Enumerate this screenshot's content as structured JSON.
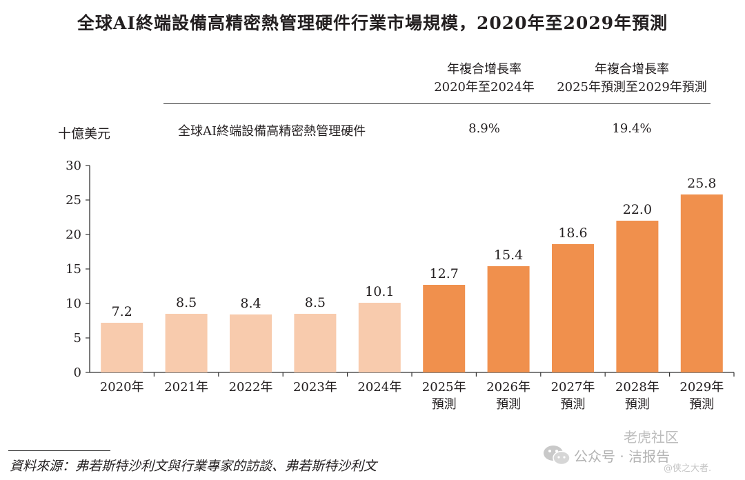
{
  "page": {
    "title": "全球AI終端設備高精密熱管理硬件行業市場規模，2020年至2029年預測",
    "source": "資料來源：弗若斯特沙利文與行業專家的訪談、弗若斯特沙利文"
  },
  "cagr_table": {
    "col1_header_line1": "年複合增長率",
    "col1_header_line2": "2020年至2024年",
    "col2_header_line1": "年複合增長率",
    "col2_header_line2": "2025年預測至2029年預測",
    "row_label": "全球AI終端設備高精密熱管理硬件",
    "col1_value": "8.9%",
    "col2_value": "19.4%"
  },
  "watermark": {
    "line1": "老虎社区",
    "brand": "公众号 · 洁报告",
    "handle": "@侠之大者."
  },
  "chart_data": {
    "type": "bar",
    "title": "全球AI終端設備高精密熱管理硬件行業市場規模，2020年至2029年預測",
    "ylabel": "十億美元",
    "xlabel": "",
    "ylim": [
      0,
      30
    ],
    "yticks": [
      0,
      5,
      10,
      15,
      20,
      25,
      30
    ],
    "categories": [
      [
        "2020年"
      ],
      [
        "2021年"
      ],
      [
        "2022年"
      ],
      [
        "2023年"
      ],
      [
        "2024年"
      ],
      [
        "2025年",
        "預測"
      ],
      [
        "2026年",
        "預測"
      ],
      [
        "2027年",
        "預測"
      ],
      [
        "2028年",
        "預測"
      ],
      [
        "2029年",
        "預測"
      ]
    ],
    "values": [
      7.2,
      8.5,
      8.4,
      8.5,
      10.1,
      12.7,
      15.4,
      18.6,
      22.0,
      25.8
    ],
    "value_labels": [
      "7.2",
      "8.5",
      "8.4",
      "8.5",
      "10.1",
      "12.7",
      "15.4",
      "18.6",
      "22.0",
      "25.8"
    ],
    "colors": {
      "historical": "#f8cbad",
      "forecast": "#f0904d",
      "axis": "#333333",
      "text": "#231f20"
    },
    "forecast_start_index": 5,
    "grid": false
  }
}
